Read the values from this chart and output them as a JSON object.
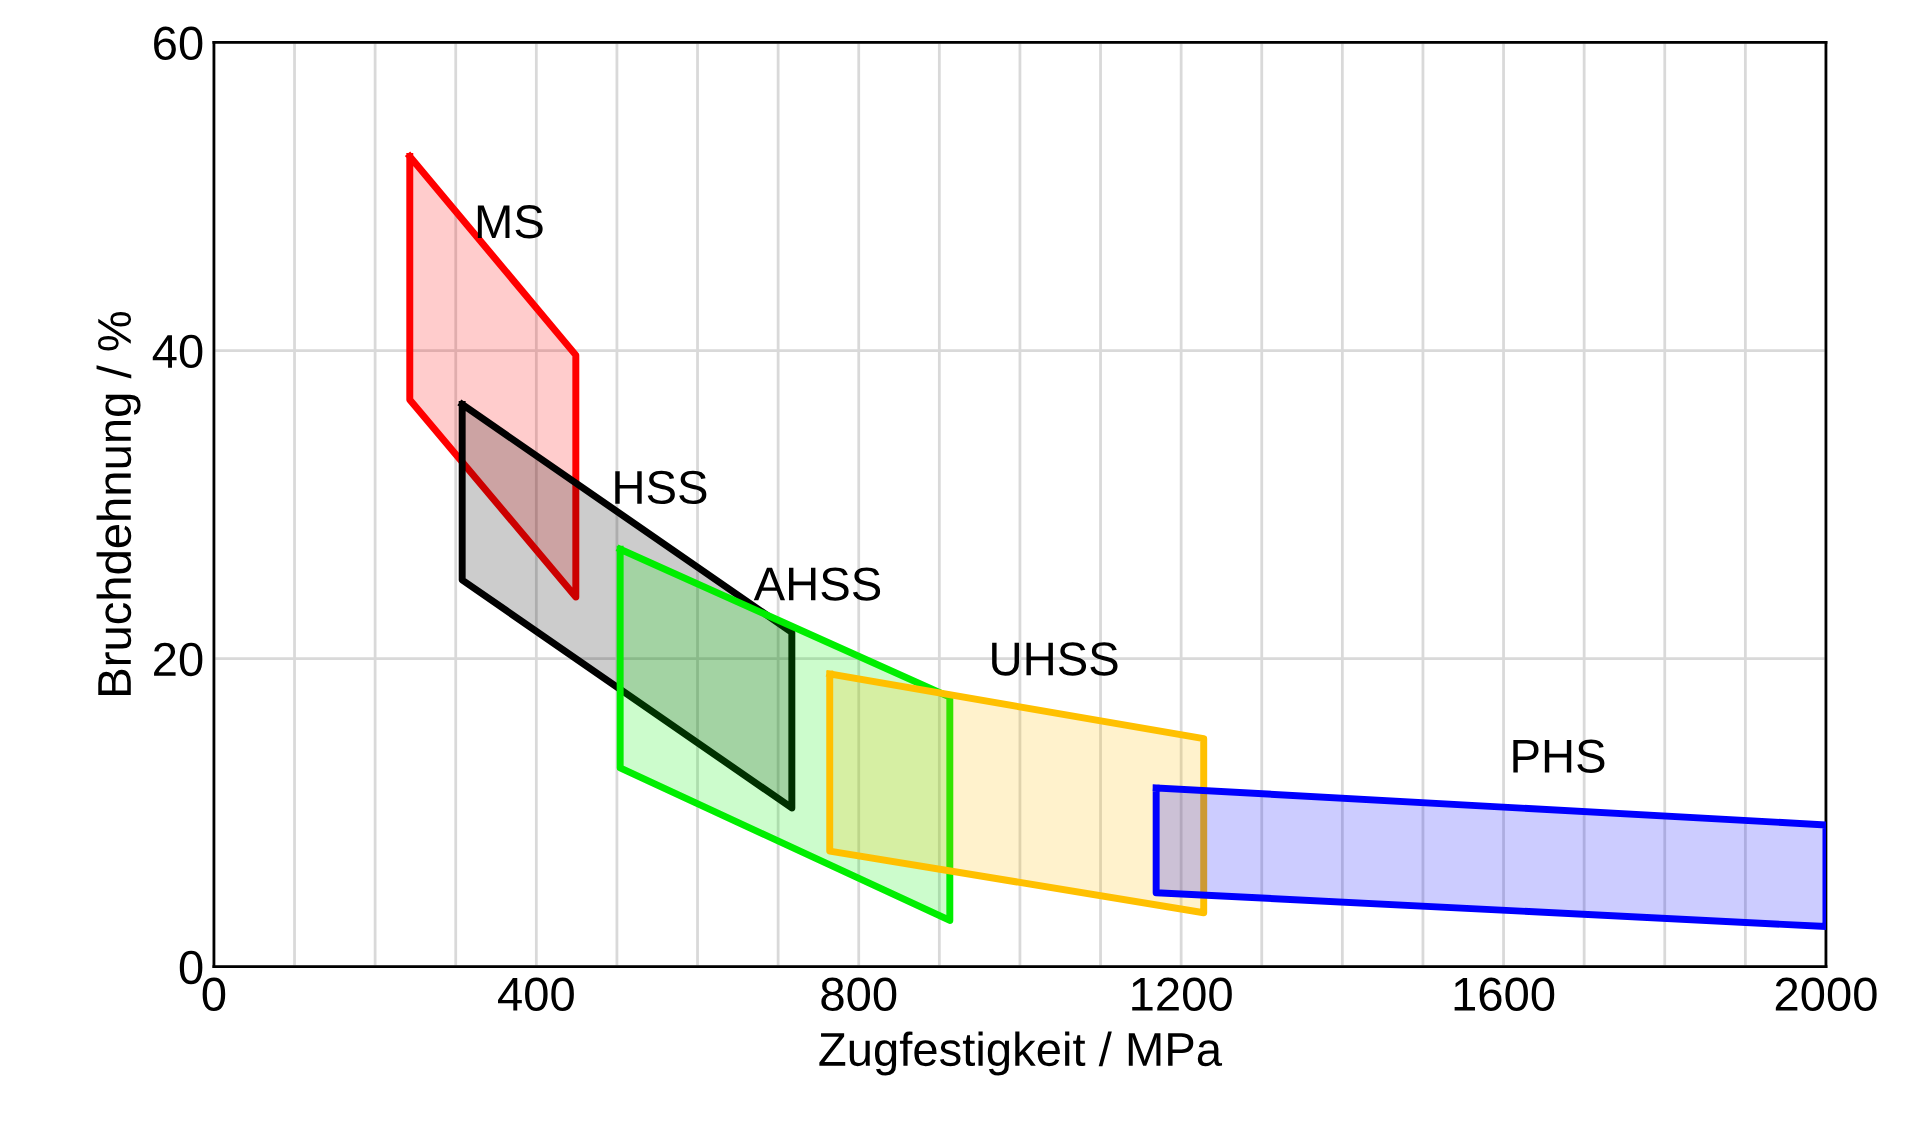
{
  "chart_data": {
    "type": "area",
    "xlabel": "Zugfestigkeit / MPa",
    "ylabel": "Bruchdehnung / %",
    "xlim": [
      0,
      2000
    ],
    "ylim": [
      0,
      60
    ],
    "xticks": [
      0,
      {
        "value": 100,
        "label": null
      },
      {
        "value": 200,
        "label": null
      },
      {
        "value": 300,
        "label": null
      },
      400,
      {
        "value": 500,
        "label": null
      },
      {
        "value": 600,
        "label": null
      },
      {
        "value": 700,
        "label": null
      },
      800,
      {
        "value": 900,
        "label": null
      },
      {
        "value": 1000,
        "label": null
      },
      {
        "value": 1100,
        "label": null
      },
      1200,
      {
        "value": 1300,
        "label": null
      },
      {
        "value": 1400,
        "label": null
      },
      {
        "value": 1500,
        "label": null
      },
      1600,
      {
        "value": 1700,
        "label": null
      },
      {
        "value": 1800,
        "label": null
      },
      {
        "value": 1900,
        "label": null
      },
      2000
    ],
    "yticks": [
      0,
      20,
      40,
      60
    ],
    "grid": true,
    "legend": false,
    "series": [
      {
        "name": "MS",
        "color": "#ff0000",
        "x": [
          243,
          449,
          449,
          243,
          243
        ],
        "values": [
          52.6,
          39.7,
          24.0,
          36.8,
          52.6
        ]
      },
      {
        "name": "HSS",
        "color": "#000000",
        "x": [
          308,
          717,
          717,
          308,
          308
        ],
        "values": [
          36.5,
          21.7,
          10.3,
          25.1,
          36.5
        ]
      },
      {
        "name": "AHSS",
        "color": "#00ee00",
        "x": [
          504,
          913,
          913,
          504,
          504
        ],
        "values": [
          27.1,
          17.5,
          3.0,
          12.9,
          27.1
        ]
      },
      {
        "name": "UHSS",
        "color": "#ffc000",
        "x": [
          764,
          1228,
          1228,
          764,
          764
        ],
        "values": [
          19.0,
          14.8,
          3.5,
          7.5,
          19.0
        ]
      },
      {
        "name": "PHS",
        "color": "#0000ff",
        "x": [
          1169,
          2000,
          2000,
          1169,
          1169
        ],
        "values": [
          11.6,
          9.2,
          2.6,
          4.8,
          11.6
        ]
      }
    ]
  }
}
